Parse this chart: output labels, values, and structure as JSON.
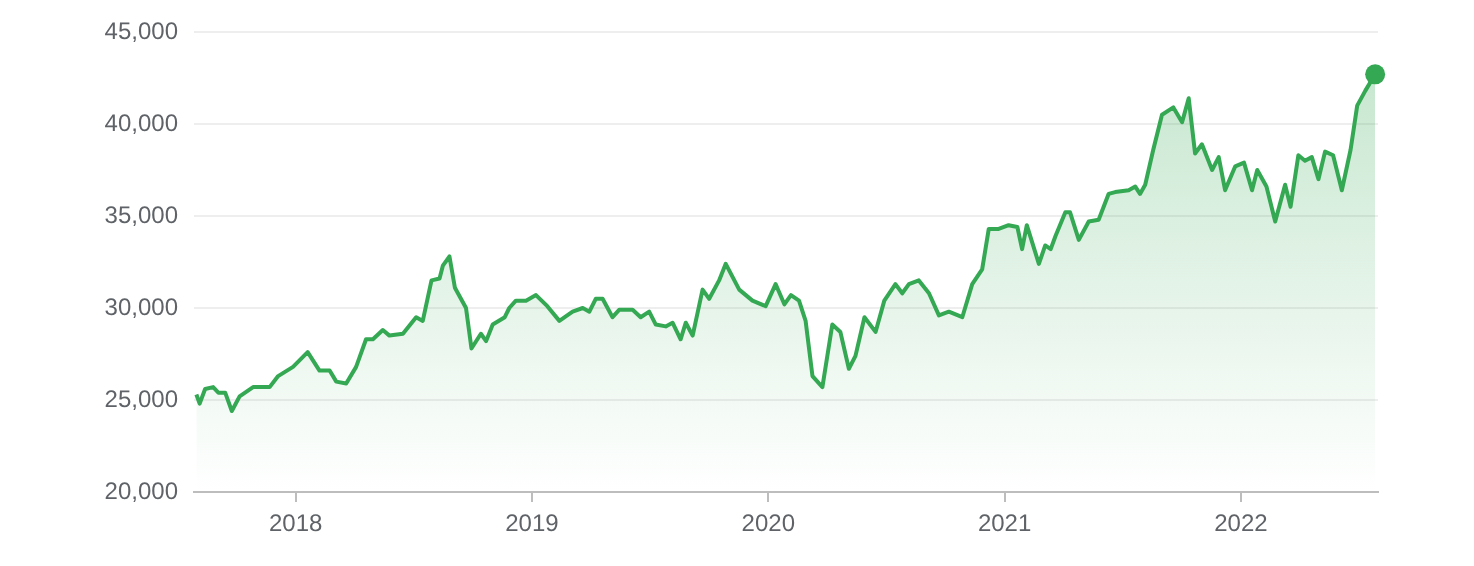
{
  "chart_data": {
    "type": "area",
    "grid": "y",
    "xlim": [
      2017.57,
      2022.58
    ],
    "ylim": [
      20000,
      45000
    ],
    "xticks": [
      2018,
      2019,
      2020,
      2021,
      2022
    ],
    "yticks": [
      {
        "value": 20000,
        "label": "20,000"
      },
      {
        "value": 25000,
        "label": "25,000"
      },
      {
        "value": 30000,
        "label": "30,000"
      },
      {
        "value": 35000,
        "label": "35,000"
      },
      {
        "value": 40000,
        "label": "40,000"
      },
      {
        "value": 45000,
        "label": "45,000"
      }
    ],
    "x": [
      2017.58,
      2017.594,
      2017.617,
      2017.651,
      2017.673,
      2017.702,
      2017.73,
      2017.763,
      2017.82,
      2017.89,
      2017.926,
      2017.989,
      2018.051,
      2018.101,
      2018.144,
      2018.172,
      2018.214,
      2018.256,
      2018.298,
      2018.327,
      2018.369,
      2018.397,
      2018.454,
      2018.51,
      2018.538,
      2018.575,
      2018.609,
      2018.623,
      2018.651,
      2018.674,
      2018.721,
      2018.744,
      2018.784,
      2018.806,
      2018.834,
      2018.885,
      2018.904,
      2018.932,
      2018.975,
      2019.017,
      2019.065,
      2019.116,
      2019.172,
      2019.215,
      2019.243,
      2019.27,
      2019.299,
      2019.341,
      2019.369,
      2019.426,
      2019.46,
      2019.496,
      2019.524,
      2019.566,
      2019.595,
      2019.629,
      2019.651,
      2019.68,
      2019.722,
      2019.75,
      2019.792,
      2019.82,
      2019.877,
      2019.933,
      2019.989,
      2020.031,
      2020.068,
      2020.096,
      2020.13,
      2020.158,
      2020.187,
      2020.229,
      2020.271,
      2020.305,
      2020.341,
      2020.369,
      2020.407,
      2020.454,
      2020.491,
      2020.538,
      2020.567,
      2020.595,
      2020.637,
      2020.68,
      2020.722,
      2020.764,
      2020.821,
      2020.863,
      2020.905,
      2020.933,
      2020.975,
      2021.017,
      2021.054,
      2021.074,
      2021.094,
      2021.145,
      2021.172,
      2021.195,
      2021.215,
      2021.257,
      2021.277,
      2021.314,
      2021.356,
      2021.398,
      2021.44,
      2021.468,
      2021.525,
      2021.553,
      2021.573,
      2021.595,
      2021.629,
      2021.666,
      2021.714,
      2021.751,
      2021.779,
      2021.806,
      2021.835,
      2021.878,
      2021.906,
      2021.933,
      2021.976,
      2022.013,
      2022.047,
      2022.069,
      2022.108,
      2022.145,
      2022.187,
      2022.21,
      2022.243,
      2022.271,
      2022.3,
      2022.328,
      2022.356,
      2022.39,
      2022.427,
      2022.464,
      2022.492,
      2022.526,
      2022.568
    ],
    "series": [
      {
        "marker": "none",
        "color": "#34a853",
        "values": [
          25300,
          24800,
          25600,
          25700,
          25400,
          25400,
          24400,
          25200,
          25700,
          25700,
          26300,
          26800,
          27600,
          26600,
          26600,
          26000,
          25900,
          26800,
          28300,
          28300,
          28800,
          28500,
          28600,
          29500,
          29300,
          31500,
          31600,
          32300,
          32800,
          31100,
          30000,
          27800,
          28600,
          28200,
          29100,
          29500,
          30000,
          30400,
          30400,
          30700,
          30100,
          29300,
          29800,
          30000,
          29800,
          30500,
          30500,
          29500,
          29900,
          29900,
          29500,
          29800,
          29100,
          29000,
          29200,
          28300,
          29200,
          28500,
          31000,
          30500,
          31500,
          32400,
          31000,
          30400,
          30100,
          31300,
          30200,
          30700,
          30400,
          29300,
          26300,
          25700,
          29100,
          28700,
          26700,
          27400,
          29500,
          28700,
          30400,
          31300,
          30800,
          31300,
          31500,
          30800,
          29600,
          29800,
          29500,
          31300,
          32100,
          34300,
          34300,
          34500,
          34400,
          33200,
          34500,
          32400,
          33400,
          33200,
          33900,
          35200,
          35200,
          33700,
          34700,
          34800,
          36200,
          36300,
          36400,
          36600,
          36200,
          36700,
          38600,
          40500,
          40900,
          40100,
          41400,
          38400,
          38900,
          37500,
          38200,
          36400,
          37700,
          37900,
          36400,
          37500,
          36600,
          34700,
          36700,
          35500,
          38300,
          38000,
          38200,
          37000,
          38500,
          38300,
          36400,
          38600,
          41000,
          41800,
          42700
        ]
      },
      {
        "type": "scatter",
        "marker": "circle",
        "color": "#34a853",
        "x": [
          2022.568
        ],
        "values": [
          42700
        ]
      }
    ]
  }
}
